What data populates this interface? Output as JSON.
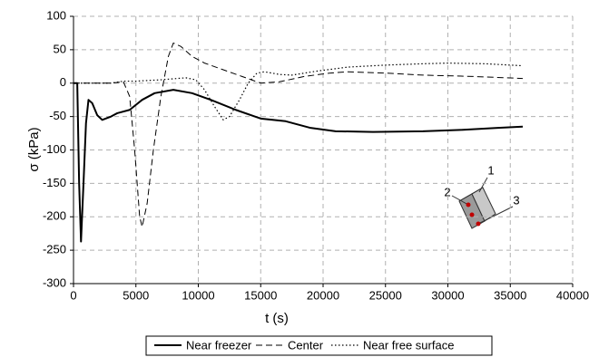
{
  "chart_data": {
    "type": "line",
    "xlabel": "t (s)",
    "ylabel": "σ (kPa)",
    "xlim": [
      0,
      40000
    ],
    "xticks": [
      0,
      5000,
      10000,
      15000,
      20000,
      25000,
      30000,
      35000,
      40000
    ],
    "ylim": [
      -300,
      100
    ],
    "yticks": [
      -300,
      -250,
      -200,
      -150,
      -100,
      -50,
      0,
      50,
      100
    ],
    "grid": true,
    "series": [
      {
        "name": "Near freezer",
        "color": "#000000",
        "style": "solid",
        "x": [
          0,
          300,
          450,
          600,
          800,
          1000,
          1200,
          1500,
          1900,
          2300,
          3000,
          3500,
          4500,
          5500,
          6500,
          8000,
          9500,
          11000,
          13000,
          15000,
          17000,
          19000,
          21000,
          24000,
          28000,
          31000,
          34000,
          36000
        ],
        "values": [
          0,
          0,
          -150,
          -237,
          -150,
          -60,
          -25,
          -30,
          -48,
          -55,
          -50,
          -45,
          -40,
          -25,
          -15,
          -10,
          -15,
          -25,
          -40,
          -53,
          -57,
          -67,
          -72,
          -73,
          -72,
          -70,
          -67,
          -65
        ]
      },
      {
        "name": "Center",
        "color": "#000000",
        "style": "dashed",
        "x": [
          0,
          3000,
          4000,
          4500,
          4900,
          5300,
          5500,
          5900,
          6400,
          7000,
          7600,
          8000,
          8600,
          9500,
          10500,
          12000,
          13500,
          15000,
          16500,
          18500,
          20500,
          22000,
          25000,
          28000,
          32000,
          36000
        ],
        "values": [
          0,
          0,
          2,
          -20,
          -100,
          -200,
          -215,
          -180,
          -100,
          -20,
          40,
          60,
          55,
          40,
          30,
          20,
          10,
          0,
          2,
          10,
          15,
          17,
          15,
          12,
          10,
          7
        ]
      },
      {
        "name": "Near free surface",
        "color": "#000000",
        "style": "dotted",
        "x": [
          0,
          3000,
          4000,
          5000,
          7000,
          9000,
          9800,
          10500,
          11300,
          12000,
          12500,
          13300,
          14000,
          14700,
          15300,
          16500,
          17500,
          19500,
          22000,
          25000,
          28000,
          30000,
          33000,
          36000
        ],
        "values": [
          0,
          0,
          3,
          3,
          5,
          8,
          5,
          -10,
          -35,
          -55,
          -50,
          -25,
          0,
          15,
          17,
          13,
          12,
          18,
          24,
          27,
          29,
          30,
          29,
          26
        ]
      }
    ],
    "annotations": [
      "1",
      "2",
      "3"
    ]
  }
}
